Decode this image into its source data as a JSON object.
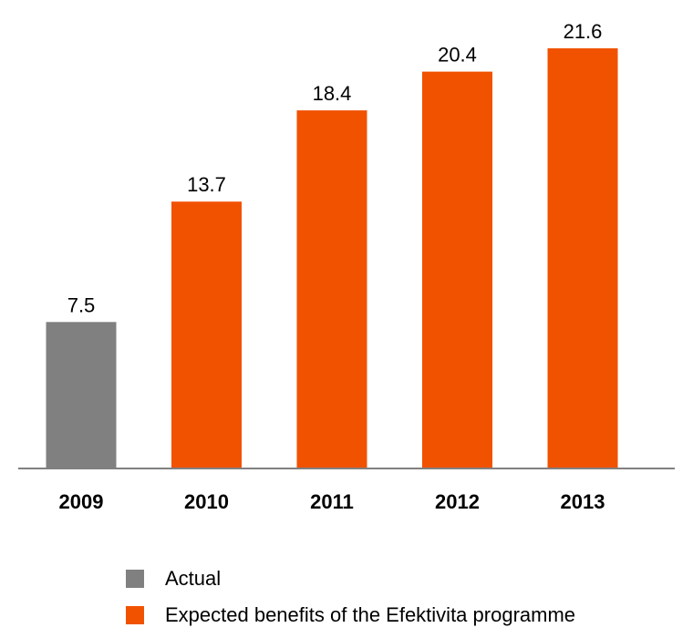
{
  "chart_data": {
    "type": "bar",
    "categories": [
      "2009",
      "2010",
      "2011",
      "2012",
      "2013"
    ],
    "values": [
      7.5,
      13.7,
      18.4,
      20.4,
      21.6
    ],
    "value_labels": [
      "7.5",
      "13.7",
      "18.4",
      "20.4",
      "21.6"
    ],
    "bar_series": [
      "Actual",
      "Expected benefits of the Efektivita programme",
      "Expected benefits of the Efektivita programme",
      "Expected benefits of the Efektivita programme",
      "Expected benefits of the Efektivita programme"
    ],
    "series": [
      {
        "name": "Actual",
        "color": "#808080",
        "values": [
          7.5,
          null,
          null,
          null,
          null
        ]
      },
      {
        "name": "Expected benefits of the Efektivita programme",
        "color": "#f15200",
        "values": [
          null,
          13.7,
          18.4,
          20.4,
          21.6
        ]
      }
    ],
    "title": "",
    "xlabel": "",
    "ylabel": "",
    "ylim": [
      0,
      21.6
    ],
    "y_axis_visible": false,
    "grid": false,
    "legend_position": "bottom"
  },
  "legend": {
    "items": [
      {
        "label": "Actual",
        "color": "#808080"
      },
      {
        "label": "Expected benefits of the Efektivita programme",
        "color": "#f15200"
      }
    ]
  },
  "colors": {
    "actual": "#808080",
    "expected": "#f15200",
    "axis": "#808080"
  }
}
